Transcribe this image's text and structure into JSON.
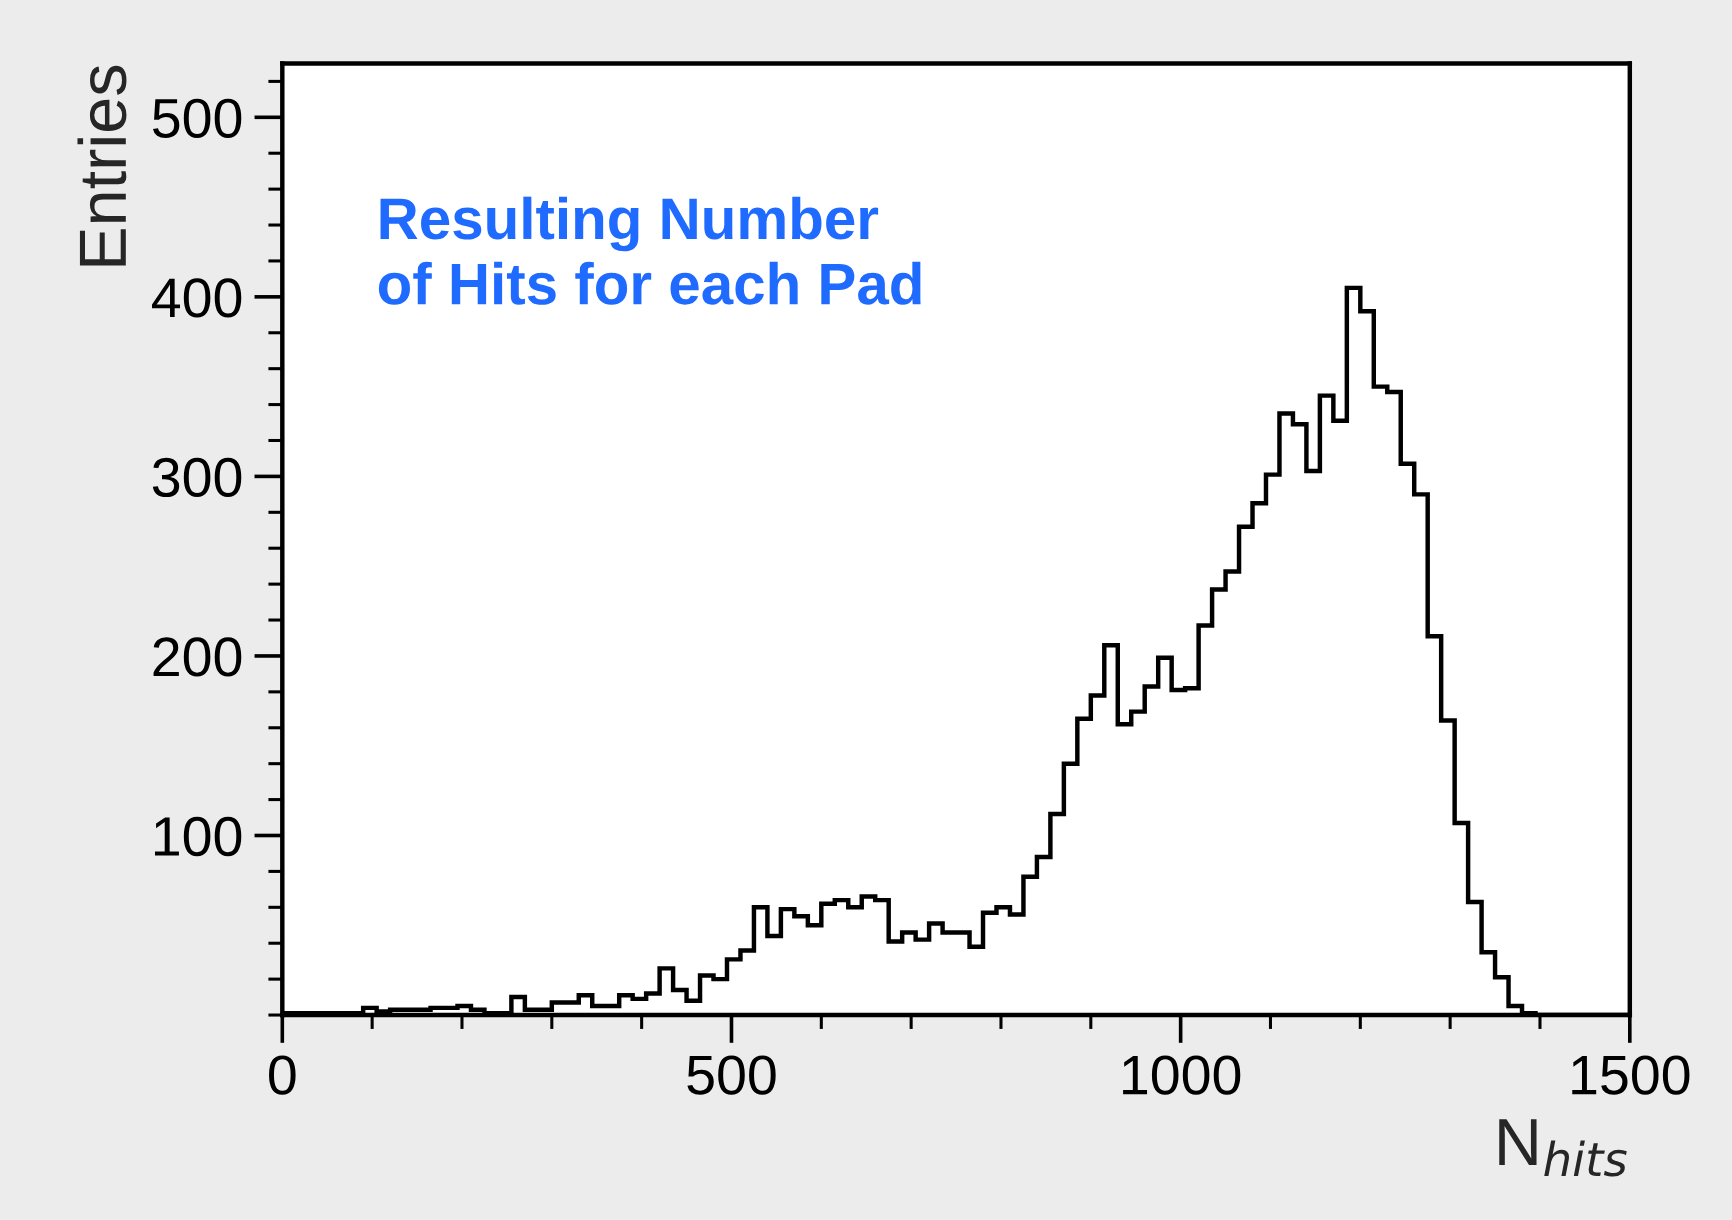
{
  "chart_data": {
    "type": "histogram",
    "xlabel": "N$_{hits}$",
    "ylabel": "Entries",
    "annotations": [
      "Resulting Number\nof Hits for each Pad"
    ],
    "bins": [
      0,
      15,
      30,
      45,
      60,
      75,
      90,
      105,
      120,
      135,
      150,
      165,
      180,
      195,
      210,
      225,
      240,
      255,
      270,
      285,
      300,
      315,
      330,
      345,
      360,
      375,
      390,
      405,
      420,
      435,
      450,
      465,
      480,
      495,
      510,
      525,
      540,
      555,
      570,
      585,
      600,
      615,
      630,
      645,
      660,
      675,
      690,
      705,
      720,
      735,
      750,
      765,
      780,
      795,
      810,
      825,
      840,
      855,
      870,
      885,
      900,
      915,
      930,
      945,
      960,
      975,
      990,
      1005,
      1020,
      1035,
      1050,
      1065,
      1080,
      1095,
      1110,
      1125,
      1140,
      1155,
      1170,
      1185,
      1200,
      1215,
      1230,
      1245,
      1260,
      1275,
      1290,
      1305,
      1320,
      1335,
      1350,
      1365,
      1380,
      1395,
      1410,
      1425,
      1440,
      1455,
      1470,
      1485,
      1500
    ],
    "values": [
      1,
      1,
      1,
      1,
      1,
      1,
      4,
      2,
      3,
      3,
      3,
      4,
      4,
      5,
      3,
      1,
      1,
      10,
      3,
      3,
      7,
      7,
      11,
      5,
      5,
      11,
      9,
      12,
      26,
      14,
      8,
      22,
      20,
      31,
      36,
      60,
      44,
      59,
      55,
      50,
      62,
      64,
      60,
      66,
      64,
      41,
      46,
      42,
      51,
      46,
      46,
      38,
      57,
      60,
      56,
      77,
      88,
      112,
      140,
      165,
      178,
      206,
      162,
      169,
      183,
      199,
      181,
      182,
      217,
      237,
      247,
      272,
      285,
      301,
      335,
      329,
      303,
      345,
      331,
      405,
      392,
      350,
      347,
      307,
      290,
      211,
      164,
      107,
      63,
      35,
      21,
      5,
      1,
      0,
      0,
      0,
      0,
      0,
      0,
      0
    ],
    "color": "#000000",
    "xlim": [
      0,
      1500
    ],
    "xticks": [
      0,
      500,
      1000,
      1500
    ],
    "ylim": [
      0,
      530
    ],
    "yticks": [
      100,
      200,
      300,
      400,
      500
    ],
    "grid": false,
    "legend": false
  }
}
